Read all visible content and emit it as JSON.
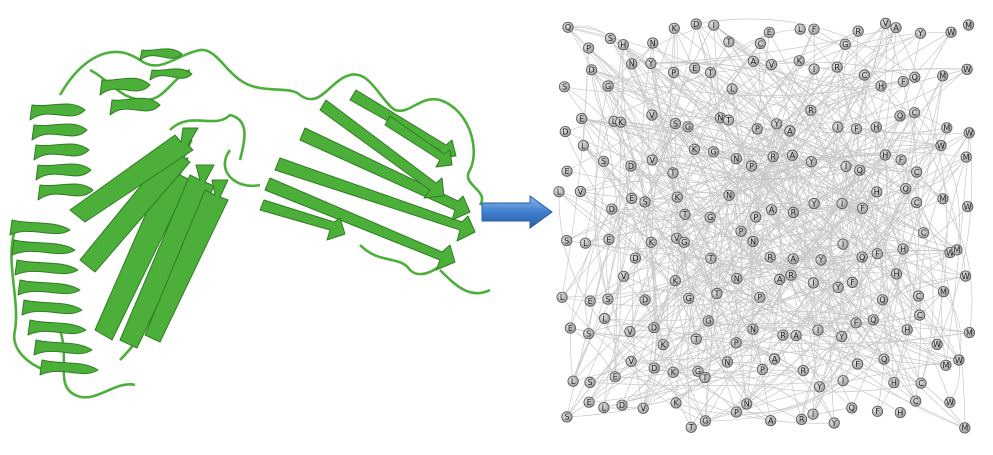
{
  "protein_structure": {
    "style": "cartoon",
    "color": "#4caf3a",
    "secondary_structure": [
      "alpha-helix",
      "beta-sheet",
      "loop"
    ]
  },
  "arrow": {
    "direction": "right",
    "color": "#3f7fcf"
  },
  "network": {
    "node_color": "#b9b9b9",
    "edge_color": "#c8c8c8",
    "node_labels": [
      "Q",
      "P",
      "S",
      "H",
      "N",
      "K",
      "D",
      "I",
      "T",
      "C",
      "E",
      "L",
      "F",
      "G",
      "R",
      "V",
      "A",
      "Y",
      "W",
      "M",
      "S",
      "D",
      "G",
      "N",
      "Y",
      "P",
      "E",
      "T",
      "L",
      "A",
      "V",
      "K",
      "I",
      "R",
      "C",
      "H",
      "F",
      "Q",
      "M",
      "W",
      "D",
      "E",
      "L",
      "K",
      "V",
      "S",
      "G",
      "N",
      "T",
      "P",
      "Y",
      "A",
      "R",
      "I",
      "F",
      "H",
      "Q",
      "C",
      "M",
      "W",
      "E",
      "L",
      "S",
      "D",
      "V",
      "T",
      "K",
      "G",
      "N",
      "P",
      "R",
      "A",
      "Y",
      "I",
      "Q",
      "H",
      "F",
      "C",
      "W",
      "M",
      "L",
      "V",
      "D",
      "E",
      "S",
      "K",
      "T",
      "G",
      "N",
      "P",
      "A",
      "R",
      "Y",
      "I",
      "F",
      "H",
      "Q",
      "C",
      "M",
      "W",
      "S",
      "L",
      "E",
      "D",
      "K",
      "V",
      "G",
      "T",
      "P",
      "N",
      "R",
      "A",
      "Y",
      "I",
      "Q",
      "F",
      "H",
      "C",
      "W",
      "M",
      "L",
      "E",
      "S",
      "V",
      "D",
      "K",
      "G",
      "T",
      "N",
      "P",
      "A",
      "R",
      "I",
      "Y",
      "F",
      "Q",
      "H",
      "C",
      "M",
      "W",
      "E",
      "S",
      "L",
      "V",
      "D",
      "K",
      "T",
      "G",
      "P",
      "N",
      "R",
      "A",
      "I",
      "Y",
      "F",
      "Q",
      "H",
      "C",
      "W",
      "M",
      "L",
      "S",
      "E",
      "V",
      "D",
      "K",
      "G",
      "T",
      "N",
      "P",
      "A",
      "R",
      "Y",
      "I",
      "F",
      "Q",
      "H",
      "C",
      "M",
      "W",
      "S",
      "E",
      "L",
      "D",
      "V",
      "K",
      "T",
      "G",
      "P",
      "N",
      "A",
      "R",
      "I",
      "Y",
      "Q",
      "F",
      "H",
      "C",
      "W",
      "M"
    ]
  }
}
